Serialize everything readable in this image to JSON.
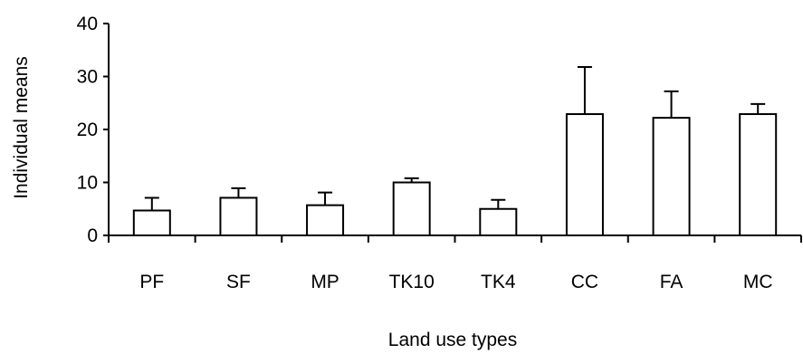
{
  "chart_data": {
    "type": "bar",
    "categories": [
      "PF",
      "SF",
      "MP",
      "TK10",
      "TK4",
      "CC",
      "FA",
      "MC"
    ],
    "values": [
      4.7,
      7.1,
      5.7,
      10.0,
      5.0,
      22.9,
      22.2,
      22.9
    ],
    "error_upper": [
      7.1,
      8.9,
      8.1,
      10.8,
      6.7,
      31.8,
      27.2,
      24.8
    ],
    "xlabel": "Land use types",
    "ylabel": "Individual means",
    "ylim": [
      0,
      40
    ],
    "yticks": [
      "0",
      "10",
      "20",
      "30",
      "40"
    ],
    "grid": false,
    "legend": "none",
    "colors": {
      "bar_fill": "#ffffff",
      "bar_stroke": "#000000",
      "axis": "#000000"
    }
  }
}
